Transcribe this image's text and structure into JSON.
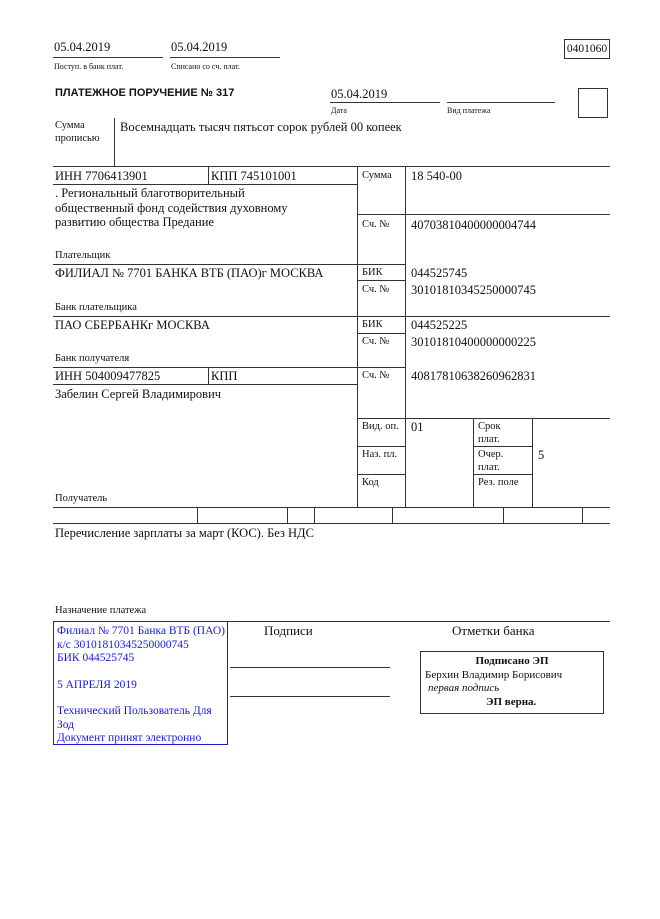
{
  "header": {
    "received_date": "05.04.2019",
    "received_label": "Поступ. в банк плат.",
    "debited_date": "05.04.2019",
    "debited_label": "Списано со сч. плат.",
    "form_code": "0401060",
    "title": "ПЛАТЕЖНОЕ ПОРУЧЕНИЕ № 317",
    "date": "05.04.2019",
    "date_label": "Дата",
    "payment_type_label": "Вид платежа"
  },
  "amount_words": {
    "label_line1": "Сумма",
    "label_line2": "прописью",
    "value": "Восемнадцать тысяч пятьсот сорок рублей 00 копеек"
  },
  "payer": {
    "inn": "ИНН 7706413901",
    "kpp": "КПП 745101001",
    "name_lines": [
      ". Региональный благотворительный",
      "общественный фонд содействия духовному",
      "развитию общества Предание"
    ],
    "label": "Плательщик",
    "sum_label": "Сумма",
    "sum": "18 540-00",
    "account_label": "Сч. №",
    "account": "40703810400000004744"
  },
  "payer_bank": {
    "name": "ФИЛИАЛ № 7701 БАНКА ВТБ (ПАО)г МОСКВА",
    "label": "Банк плательщика",
    "bik_label": "БИК",
    "bik": "044525745",
    "account_label": "Сч. №",
    "account": "30101810345250000745"
  },
  "payee_bank": {
    "name": "ПАО СБЕРБАНКг МОСКВА",
    "label": "Банк получателя",
    "bik_label": "БИК",
    "bik": "044525225",
    "account_label": "Сч. №",
    "account": "30101810400000000225"
  },
  "payee": {
    "inn": "ИНН 504009477825",
    "kpp": "КПП",
    "name": "Забелин Сергей Владимирович",
    "label": "Получатель",
    "account_label": "Сч. №",
    "account": "40817810638260962831"
  },
  "codes": {
    "op_type_label": "Вид. оп.",
    "op_type": "01",
    "purpose_code_label": "Наз. пл.",
    "code_label": "Код",
    "term_label": [
      "Срок",
      "плат."
    ],
    "priority_label": [
      "Очер.",
      "плат."
    ],
    "priority": "5",
    "reserve_label": "Рез. поле"
  },
  "purpose": {
    "text": "Перечисление зарплаты за март (КОС). Без НДС",
    "label": "Назначение платежа"
  },
  "stamp": {
    "color": "#1a1acc",
    "lines": [
      "Филиал № 7701 Банка ВТБ (ПАО)",
      "к/с 30101810345250000745",
      "БИК 044525745",
      "5 АПРЕЛЯ 2019",
      "Технический Пользователь Для",
      "Зод",
      "Документ принят электронно"
    ]
  },
  "signatures": {
    "label": "Подписи",
    "bank_marks_label": "Отметки банка",
    "signed_title": "Подписано ЭП",
    "signer": "Берхин Владимир Борисович",
    "signer_role": "первая подпись",
    "verified": "ЭП верна."
  }
}
